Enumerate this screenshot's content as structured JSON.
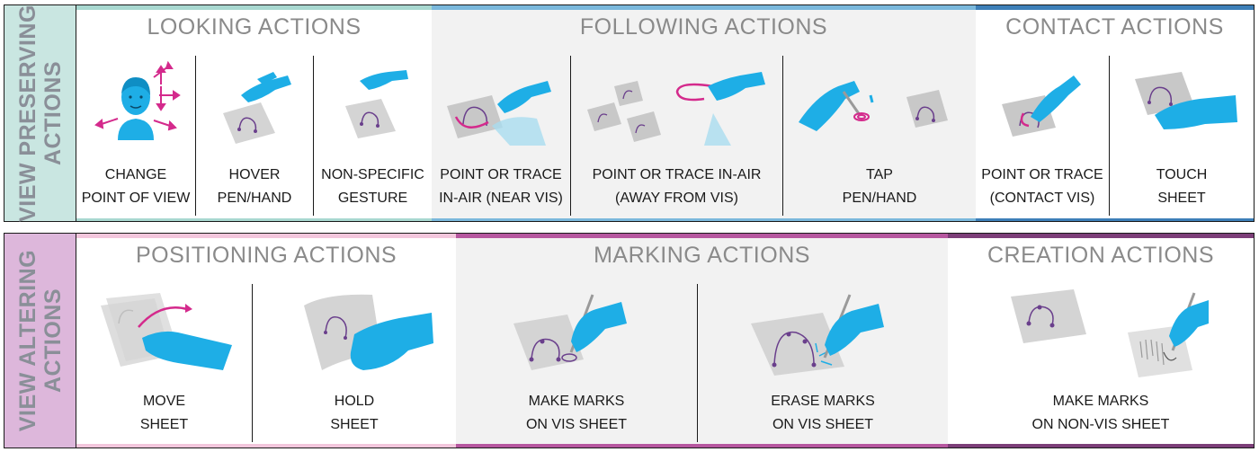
{
  "rows": [
    {
      "side_label": "VIEW PRESERVING ACTIONS",
      "side_line1": "VIEW PRESERVING",
      "side_line2": "ACTIONS",
      "groups": [
        {
          "title": "LOOKING ACTIONS",
          "color": "#a8d8d0",
          "cells": [
            {
              "line1": "CHANGE",
              "line2": "POINT OF VIEW",
              "icon": "person-head-icon"
            },
            {
              "line1": "HOVER",
              "line2": "PEN/HAND",
              "icon": "hand-hover-icon"
            },
            {
              "line1": "NON-SPECIFIC",
              "line2": "GESTURE",
              "icon": "hand-gesture-icon"
            }
          ]
        },
        {
          "title": "FOLLOWING ACTIONS",
          "color": "#7ab8dc",
          "cells": [
            {
              "line1": "POINT OR TRACE",
              "line2": "IN-AIR (NEAR VIS)",
              "icon": "hand-trace-near-icon"
            },
            {
              "line1": "POINT OR TRACE IN-AIR",
              "line2": "(AWAY FROM VIS)",
              "icon": "hand-trace-away-icon"
            },
            {
              "line1": "TAP",
              "line2": "PEN/HAND",
              "icon": "hand-tap-icon"
            }
          ]
        },
        {
          "title": "CONTACT ACTIONS",
          "color": "#3d7fb8",
          "cells": [
            {
              "line1": "POINT OR TRACE",
              "line2": "(CONTACT VIS)",
              "icon": "hand-contact-trace-icon"
            },
            {
              "line1": "TOUCH",
              "line2": "SHEET",
              "icon": "hand-touch-icon"
            }
          ]
        }
      ]
    },
    {
      "side_label": "VIEW ALTERING ACTIONS",
      "side_line1": "VIEW ALTERING",
      "side_line2": "ACTIONS",
      "groups": [
        {
          "title": "POSITIONING ACTIONS",
          "color": "#f2c6dc",
          "cells": [
            {
              "line1": "MOVE",
              "line2": "SHEET",
              "icon": "hand-move-sheet-icon"
            },
            {
              "line1": "HOLD",
              "line2": "SHEET",
              "icon": "hand-hold-sheet-icon"
            }
          ]
        },
        {
          "title": "MARKING ACTIONS",
          "color": "#b6579f",
          "cells": [
            {
              "line1": "MAKE MARKS",
              "line2": "ON VIS SHEET",
              "icon": "pen-mark-icon"
            },
            {
              "line1": "ERASE MARKS",
              "line2": "ON VIS SHEET",
              "icon": "pen-erase-icon"
            }
          ]
        },
        {
          "title": "CREATION ACTIONS",
          "color": "#7c3e78",
          "cells": [
            {
              "line1": "MAKE MARKS",
              "line2": "ON NON-VIS SHEET",
              "icon": "pen-create-icon"
            }
          ]
        }
      ]
    }
  ],
  "colors": {
    "hand": "#1eaee6",
    "sheet": "#d4d4d4",
    "vis_line": "#6a3f8c",
    "accent": "#d42a8c",
    "frame": "#1a1a1a",
    "title_text": "#8a8a8a",
    "alt_bg": "#f2f2f2"
  }
}
